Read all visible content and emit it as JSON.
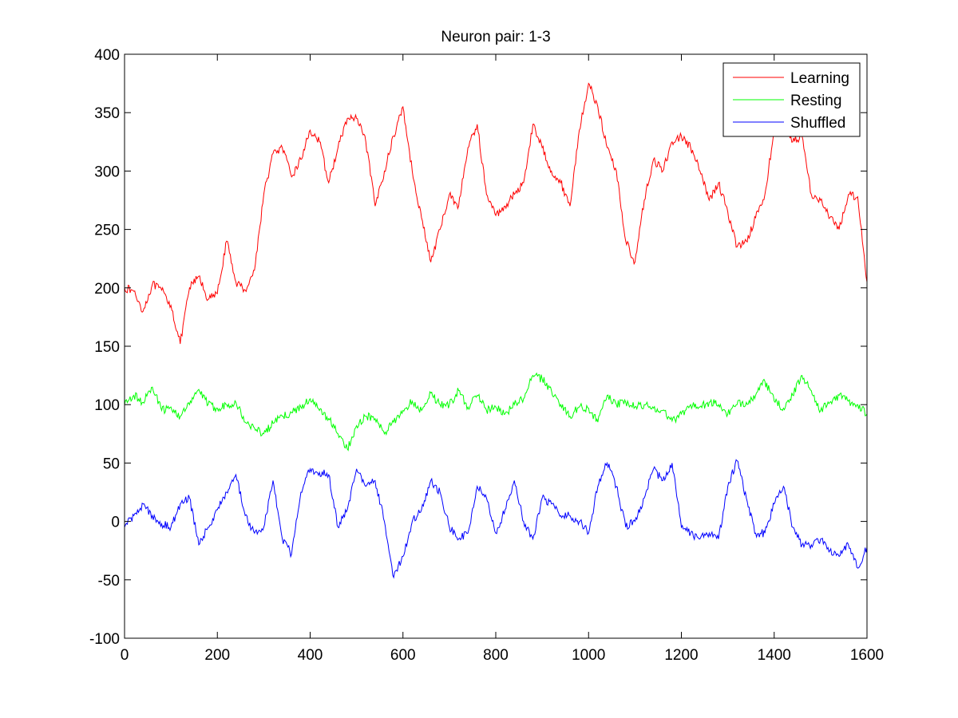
{
  "chart_data": {
    "type": "line",
    "title": "Neuron pair: 1-3",
    "xlabel": "",
    "ylabel": "",
    "xlim": [
      0,
      1600
    ],
    "ylim": [
      -100,
      400
    ],
    "xticks": [
      "0",
      "200",
      "400",
      "600",
      "800",
      "1000",
      "1200",
      "1400",
      "1600"
    ],
    "yticks": [
      "-100",
      "-50",
      "0",
      "50",
      "100",
      "150",
      "200",
      "250",
      "300",
      "350",
      "400"
    ],
    "grid": false,
    "legend_position": "top-right",
    "series": [
      {
        "name": "Learning",
        "color": "#ff0000",
        "points": [
          [
            0,
            200
          ],
          [
            20,
            197
          ],
          [
            40,
            180
          ],
          [
            60,
            203
          ],
          [
            80,
            198
          ],
          [
            100,
            185
          ],
          [
            120,
            152
          ],
          [
            140,
            200
          ],
          [
            160,
            210
          ],
          [
            180,
            190
          ],
          [
            200,
            195
          ],
          [
            220,
            240
          ],
          [
            240,
            205
          ],
          [
            260,
            198
          ],
          [
            280,
            215
          ],
          [
            300,
            280
          ],
          [
            320,
            315
          ],
          [
            340,
            320
          ],
          [
            360,
            295
          ],
          [
            380,
            310
          ],
          [
            400,
            335
          ],
          [
            420,
            325
          ],
          [
            440,
            290
          ],
          [
            460,
            320
          ],
          [
            480,
            345
          ],
          [
            500,
            345
          ],
          [
            520,
            325
          ],
          [
            540,
            270
          ],
          [
            560,
            300
          ],
          [
            580,
            330
          ],
          [
            600,
            355
          ],
          [
            620,
            300
          ],
          [
            640,
            260
          ],
          [
            660,
            222
          ],
          [
            680,
            250
          ],
          [
            700,
            280
          ],
          [
            720,
            270
          ],
          [
            740,
            320
          ],
          [
            760,
            340
          ],
          [
            780,
            280
          ],
          [
            800,
            262
          ],
          [
            820,
            270
          ],
          [
            840,
            280
          ],
          [
            860,
            290
          ],
          [
            880,
            340
          ],
          [
            900,
            320
          ],
          [
            920,
            300
          ],
          [
            940,
            290
          ],
          [
            960,
            270
          ],
          [
            980,
            335
          ],
          [
            1000,
            375
          ],
          [
            1020,
            355
          ],
          [
            1040,
            320
          ],
          [
            1060,
            300
          ],
          [
            1080,
            240
          ],
          [
            1100,
            222
          ],
          [
            1120,
            275
          ],
          [
            1140,
            310
          ],
          [
            1160,
            300
          ],
          [
            1180,
            325
          ],
          [
            1200,
            330
          ],
          [
            1220,
            320
          ],
          [
            1240,
            300
          ],
          [
            1260,
            275
          ],
          [
            1280,
            290
          ],
          [
            1300,
            265
          ],
          [
            1320,
            235
          ],
          [
            1340,
            240
          ],
          [
            1360,
            260
          ],
          [
            1380,
            280
          ],
          [
            1400,
            335
          ],
          [
            1420,
            345
          ],
          [
            1440,
            325
          ],
          [
            1460,
            330
          ],
          [
            1480,
            280
          ],
          [
            1500,
            275
          ],
          [
            1520,
            260
          ],
          [
            1540,
            250
          ],
          [
            1560,
            280
          ],
          [
            1580,
            278
          ],
          [
            1600,
            205
          ]
        ]
      },
      {
        "name": "Resting",
        "color": "#00ff00",
        "points": [
          [
            0,
            100
          ],
          [
            20,
            108
          ],
          [
            40,
            102
          ],
          [
            60,
            115
          ],
          [
            80,
            95
          ],
          [
            100,
            98
          ],
          [
            120,
            90
          ],
          [
            140,
            100
          ],
          [
            160,
            113
          ],
          [
            180,
            100
          ],
          [
            200,
            97
          ],
          [
            220,
            100
          ],
          [
            240,
            102
          ],
          [
            260,
            85
          ],
          [
            280,
            80
          ],
          [
            300,
            75
          ],
          [
            320,
            84
          ],
          [
            340,
            90
          ],
          [
            360,
            93
          ],
          [
            380,
            98
          ],
          [
            400,
            105
          ],
          [
            420,
            95
          ],
          [
            440,
            88
          ],
          [
            460,
            75
          ],
          [
            480,
            62
          ],
          [
            500,
            82
          ],
          [
            520,
            90
          ],
          [
            540,
            88
          ],
          [
            560,
            75
          ],
          [
            580,
            85
          ],
          [
            600,
            95
          ],
          [
            620,
            103
          ],
          [
            640,
            95
          ],
          [
            660,
            110
          ],
          [
            680,
            100
          ],
          [
            700,
            100
          ],
          [
            720,
            112
          ],
          [
            740,
            98
          ],
          [
            760,
            108
          ],
          [
            780,
            95
          ],
          [
            800,
            98
          ],
          [
            820,
            92
          ],
          [
            840,
            100
          ],
          [
            860,
            105
          ],
          [
            880,
            125
          ],
          [
            900,
            122
          ],
          [
            920,
            112
          ],
          [
            940,
            100
          ],
          [
            960,
            90
          ],
          [
            980,
            98
          ],
          [
            1000,
            97
          ],
          [
            1020,
            85
          ],
          [
            1040,
            108
          ],
          [
            1060,
            100
          ],
          [
            1080,
            102
          ],
          [
            1100,
            98
          ],
          [
            1120,
            100
          ],
          [
            1140,
            97
          ],
          [
            1160,
            95
          ],
          [
            1180,
            86
          ],
          [
            1200,
            92
          ],
          [
            1220,
            100
          ],
          [
            1240,
            98
          ],
          [
            1260,
            102
          ],
          [
            1280,
            100
          ],
          [
            1300,
            92
          ],
          [
            1320,
            100
          ],
          [
            1340,
            102
          ],
          [
            1360,
            108
          ],
          [
            1380,
            120
          ],
          [
            1400,
            103
          ],
          [
            1420,
            97
          ],
          [
            1440,
            108
          ],
          [
            1460,
            125
          ],
          [
            1480,
            112
          ],
          [
            1500,
            95
          ],
          [
            1520,
            102
          ],
          [
            1540,
            108
          ],
          [
            1560,
            103
          ],
          [
            1580,
            100
          ],
          [
            1600,
            92
          ]
        ]
      },
      {
        "name": "Shuffled",
        "color": "#0000ff",
        "points": [
          [
            0,
            -5
          ],
          [
            20,
            5
          ],
          [
            40,
            15
          ],
          [
            60,
            5
          ],
          [
            80,
            -2
          ],
          [
            100,
            -5
          ],
          [
            120,
            15
          ],
          [
            140,
            20
          ],
          [
            160,
            -20
          ],
          [
            180,
            -5
          ],
          [
            200,
            10
          ],
          [
            220,
            25
          ],
          [
            240,
            40
          ],
          [
            260,
            5
          ],
          [
            280,
            -10
          ],
          [
            300,
            -5
          ],
          [
            320,
            35
          ],
          [
            340,
            -15
          ],
          [
            360,
            -28
          ],
          [
            380,
            25
          ],
          [
            400,
            45
          ],
          [
            420,
            42
          ],
          [
            440,
            40
          ],
          [
            460,
            -5
          ],
          [
            480,
            10
          ],
          [
            500,
            45
          ],
          [
            520,
            30
          ],
          [
            540,
            35
          ],
          [
            560,
            0
          ],
          [
            580,
            -48
          ],
          [
            600,
            -30
          ],
          [
            620,
            0
          ],
          [
            640,
            10
          ],
          [
            660,
            35
          ],
          [
            680,
            25
          ],
          [
            700,
            -5
          ],
          [
            720,
            -15
          ],
          [
            740,
            -10
          ],
          [
            760,
            30
          ],
          [
            780,
            20
          ],
          [
            800,
            -10
          ],
          [
            820,
            10
          ],
          [
            840,
            35
          ],
          [
            860,
            0
          ],
          [
            880,
            -15
          ],
          [
            900,
            20
          ],
          [
            920,
            15
          ],
          [
            940,
            5
          ],
          [
            960,
            5
          ],
          [
            980,
            0
          ],
          [
            1000,
            -10
          ],
          [
            1020,
            30
          ],
          [
            1040,
            50
          ],
          [
            1060,
            30
          ],
          [
            1080,
            -5
          ],
          [
            1100,
            0
          ],
          [
            1120,
            20
          ],
          [
            1140,
            45
          ],
          [
            1160,
            35
          ],
          [
            1180,
            50
          ],
          [
            1200,
            -5
          ],
          [
            1220,
            -10
          ],
          [
            1240,
            -15
          ],
          [
            1260,
            -10
          ],
          [
            1280,
            -15
          ],
          [
            1300,
            30
          ],
          [
            1320,
            52
          ],
          [
            1340,
            20
          ],
          [
            1360,
            -10
          ],
          [
            1380,
            -10
          ],
          [
            1400,
            15
          ],
          [
            1420,
            30
          ],
          [
            1440,
            -5
          ],
          [
            1460,
            -20
          ],
          [
            1480,
            -20
          ],
          [
            1500,
            -15
          ],
          [
            1520,
            -25
          ],
          [
            1540,
            -30
          ],
          [
            1560,
            -20
          ],
          [
            1580,
            -40
          ],
          [
            1600,
            -22
          ]
        ]
      }
    ]
  }
}
